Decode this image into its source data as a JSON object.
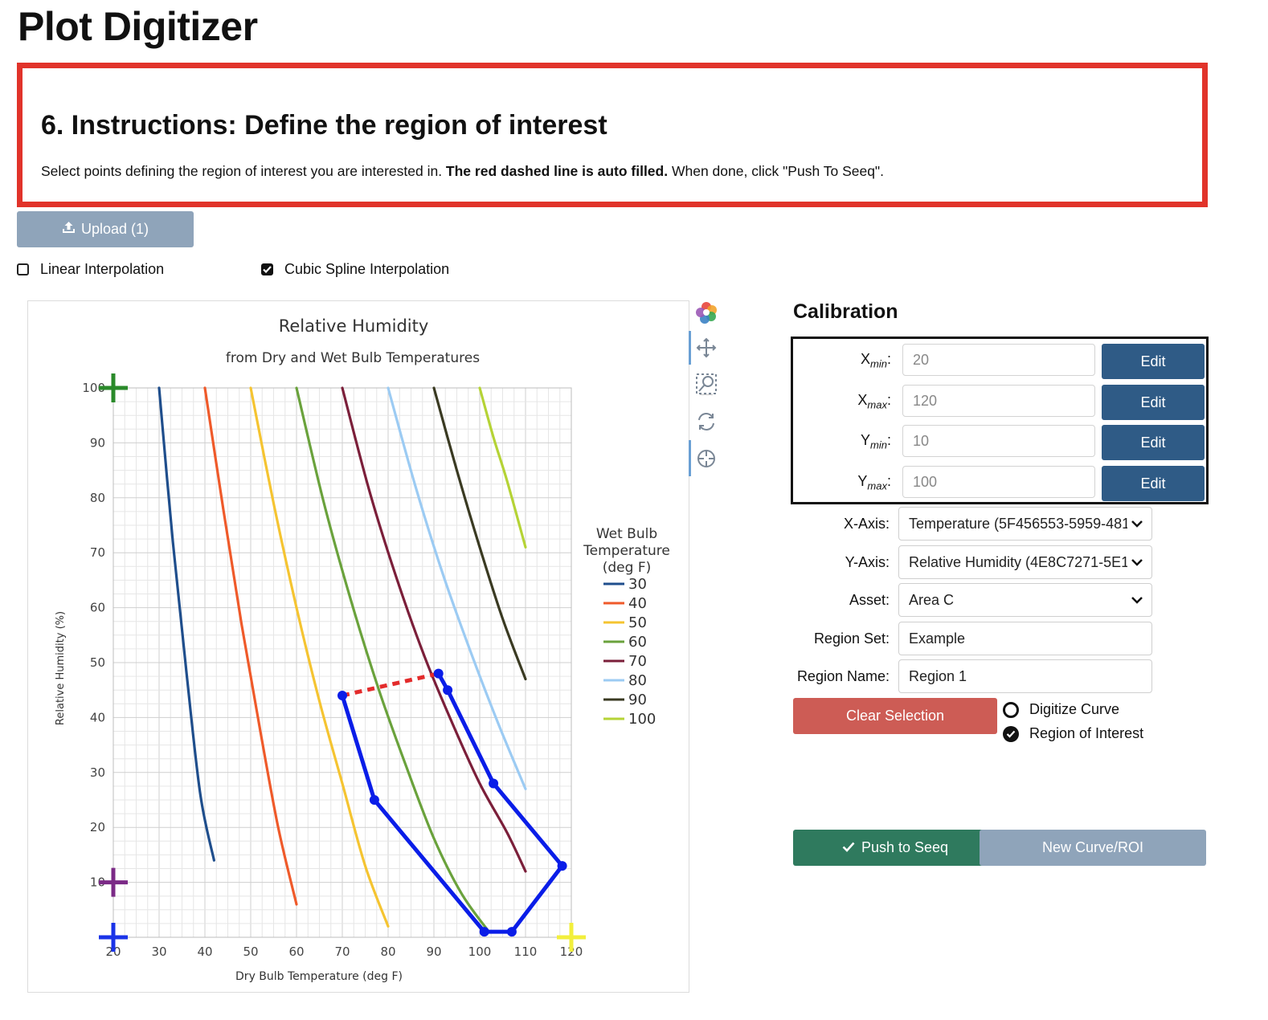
{
  "app": {
    "title": "Plot Digitizer"
  },
  "instructions": {
    "heading": "6. Instructions: Define the region of interest",
    "text_before": "Select points defining the region of interest you are interested in. ",
    "text_bold": "The red dashed line is auto filled.",
    "text_after": " When done, click \"Push To Seeq\"."
  },
  "upload": {
    "label": "Upload (1)",
    "icon": "upload-icon"
  },
  "interpolation": [
    {
      "label": "Linear Interpolation",
      "checked": false
    },
    {
      "label": "Cubic Spline Interpolation",
      "checked": true
    }
  ],
  "toolbar": {
    "tools": [
      "logo-icon",
      "pan-icon",
      "zoom-box-icon",
      "reset-icon",
      "crosshair-icon"
    ]
  },
  "chart_data": {
    "type": "line",
    "title": "Relative Humidity",
    "subtitle": "from Dry and Wet Bulb Temperatures",
    "xlabel": "Dry Bulb Temperature (deg F)",
    "ylabel": "Relative Humidity (%)",
    "xlim": [
      20,
      120
    ],
    "ylim": [
      0,
      100
    ],
    "x_ticks": [
      "20",
      "30",
      "40",
      "50",
      "60",
      "70",
      "80",
      "90",
      "100",
      "110",
      "120"
    ],
    "y_ticks": [
      "10",
      "20",
      "30",
      "40",
      "50",
      "60",
      "70",
      "80",
      "90",
      "100"
    ],
    "grid": true,
    "legend": {
      "title_lines": [
        "Wet Bulb",
        "Temperature",
        "(deg F)"
      ],
      "position": "right"
    },
    "series": [
      {
        "name": "30",
        "color": "#1f4e8c",
        "x": [
          30,
          33,
          36,
          39,
          42
        ],
        "y": [
          100,
          72,
          48,
          26,
          14
        ]
      },
      {
        "name": "40",
        "color": "#ef5a2a",
        "x": [
          40,
          44,
          48,
          52,
          56,
          60
        ],
        "y": [
          100,
          78,
          57,
          38,
          20,
          6
        ]
      },
      {
        "name": "50",
        "color": "#f5c431",
        "x": [
          50,
          55,
          60,
          65,
          70,
          75,
          80
        ],
        "y": [
          100,
          79,
          60,
          43,
          28,
          13,
          2
        ]
      },
      {
        "name": "60",
        "color": "#6aa23c",
        "x": [
          60,
          66,
          72,
          78,
          84,
          90,
          96,
          102
        ],
        "y": [
          100,
          79,
          61,
          45,
          31,
          18,
          8,
          1
        ]
      },
      {
        "name": "70",
        "color": "#7b1f3a",
        "x": [
          70,
          76,
          82,
          88,
          94,
          100,
          106,
          110
        ],
        "y": [
          100,
          81,
          65,
          51,
          39,
          28,
          19,
          12
        ]
      },
      {
        "name": "80",
        "color": "#9ccbf3",
        "x": [
          80,
          86,
          92,
          98,
          104,
          110
        ],
        "y": [
          100,
          82,
          66,
          52,
          39,
          27
        ]
      },
      {
        "name": "90",
        "color": "#3a3a22",
        "x": [
          90,
          95,
          100,
          105,
          110
        ],
        "y": [
          100,
          85,
          71,
          58,
          47
        ]
      },
      {
        "name": "100",
        "color": "#b5d336",
        "x": [
          100,
          103,
          106,
          110
        ],
        "y": [
          100,
          91,
          83,
          71
        ]
      }
    ],
    "roi": {
      "color": "#0a1de8",
      "points": [
        [
          91,
          48
        ],
        [
          93,
          45
        ],
        [
          103,
          28
        ],
        [
          118,
          13
        ],
        [
          107,
          1
        ],
        [
          101,
          1
        ],
        [
          77,
          25
        ],
        [
          70,
          44
        ]
      ],
      "auto_fill_color": "#e32b2b"
    },
    "calibration_markers": [
      {
        "name": "ymax-marker",
        "x": 20,
        "y": 100,
        "color": "#2a8a2a"
      },
      {
        "name": "ymin-marker",
        "x": 20,
        "y": 10,
        "color": "#7b2a86"
      },
      {
        "name": "xmin-marker",
        "x": 20,
        "y": 0,
        "color": "#1a33e8"
      },
      {
        "name": "xmax-marker",
        "x": 120,
        "y": 0,
        "color": "#f2ef3c"
      }
    ]
  },
  "calibration": {
    "title": "Calibration",
    "rows": [
      {
        "axis": "X",
        "sub": "min",
        "value": "20",
        "edit_label": "Edit"
      },
      {
        "axis": "X",
        "sub": "max",
        "value": "120",
        "edit_label": "Edit"
      },
      {
        "axis": "Y",
        "sub": "min",
        "value": "10",
        "edit_label": "Edit"
      },
      {
        "axis": "Y",
        "sub": "max",
        "value": "100",
        "edit_label": "Edit"
      }
    ]
  },
  "form": {
    "x_axis_label": "X-Axis:",
    "x_axis_value": "Temperature (5F456553-5959-481",
    "y_axis_label": "Y-Axis:",
    "y_axis_value": "Relative Humidity (4E8C7271-5E1",
    "asset_label": "Asset:",
    "asset_value": "Area C",
    "region_set_label": "Region Set:",
    "region_set_value": "Example",
    "region_name_label": "Region Name:",
    "region_name_value": "Region 1"
  },
  "actions": {
    "clear_label": "Clear Selection",
    "mode_options": [
      {
        "label": "Digitize Curve",
        "selected": false
      },
      {
        "label": "Region of Interest",
        "selected": true
      }
    ],
    "push_label": "Push to Seeq",
    "new_label": "New Curve/ROI"
  },
  "colors": {
    "instruction_border": "#e1332a",
    "primary": "#2f5b86",
    "danger": "#cd5c55",
    "success": "#2f7a5e",
    "muted": "#8fa4ba"
  }
}
